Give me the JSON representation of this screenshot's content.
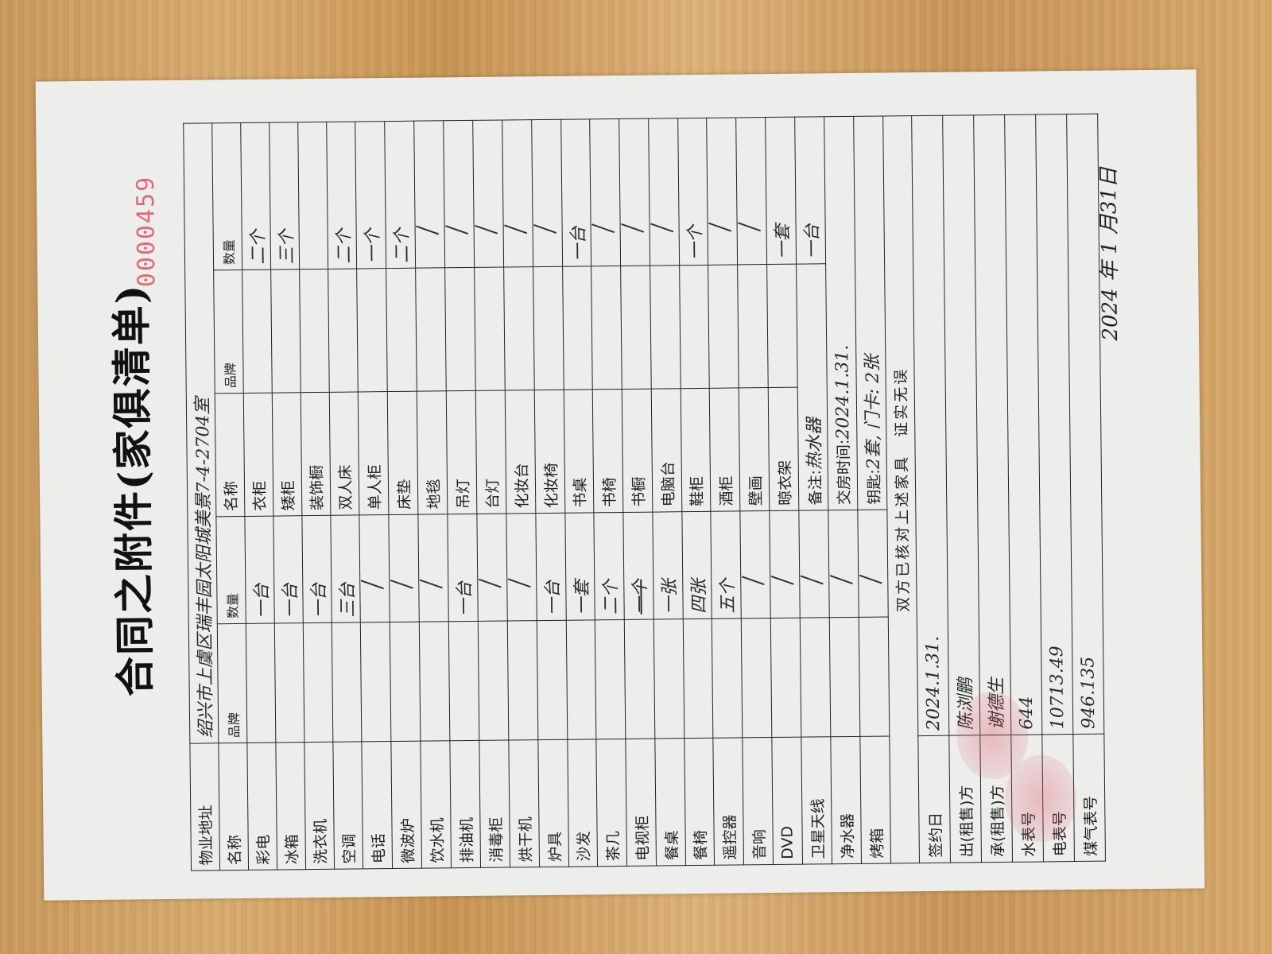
{
  "title": "合同之附件(家俱清单)",
  "serial": "0000459",
  "sign_date": "2024 年 1 月31日",
  "address": {
    "label": "物业地址",
    "value": "绍兴市上虞区瑞丰园太阳城美景7-4-2704室"
  },
  "headers": {
    "name": "名称",
    "brand": "品牌",
    "qty": "数量"
  },
  "left_items": [
    {
      "name": "彩电",
      "qty": "一台"
    },
    {
      "name": "冰箱",
      "qty": "一台"
    },
    {
      "name": "洗衣机",
      "qty": "一台"
    },
    {
      "name": "空调",
      "qty": "三台"
    },
    {
      "name": "电话",
      "qty": "/"
    },
    {
      "name": "微波炉",
      "qty": "/"
    },
    {
      "name": "饮水机",
      "qty": "/"
    },
    {
      "name": "排油机",
      "qty": "一台"
    },
    {
      "name": "消毒柜",
      "qty": "/"
    },
    {
      "name": "烘干机",
      "qty": "/"
    },
    {
      "name": "炉具",
      "qty": "一台"
    },
    {
      "name": "沙发",
      "qty": "一套"
    },
    {
      "name": "茶几",
      "qty": "二个"
    },
    {
      "name": "电视柜",
      "qty": "一个"
    },
    {
      "name": "餐桌",
      "qty": "一张"
    },
    {
      "name": "餐椅",
      "qty": "四张"
    },
    {
      "name": "遥控器",
      "qty": "五个"
    },
    {
      "name": "音响",
      "qty": "/"
    },
    {
      "name": "DVD",
      "qty": "/"
    },
    {
      "name": "卫星天线",
      "qty": "/"
    },
    {
      "name": "净水器",
      "qty": "/"
    },
    {
      "name": "烤箱",
      "qty": "/"
    }
  ],
  "right_items": [
    {
      "name": "衣柜",
      "qty": "二个"
    },
    {
      "name": "矮柜",
      "qty": "三个"
    },
    {
      "name": "装饰橱",
      "qty": ""
    },
    {
      "name": "双人床",
      "qty": "二个"
    },
    {
      "name": "单人柜",
      "qty": "一个"
    },
    {
      "name": "床垫",
      "qty": "二个"
    },
    {
      "name": "地毯",
      "qty": "/"
    },
    {
      "name": "吊灯",
      "qty": "/"
    },
    {
      "name": "台灯",
      "qty": "/"
    },
    {
      "name": "化妆台",
      "qty": "/"
    },
    {
      "name": "化妆椅",
      "qty": "/"
    },
    {
      "name": "书桌",
      "qty": "一台"
    },
    {
      "name": "书椅",
      "qty": "/"
    },
    {
      "name": "书橱",
      "qty": "/"
    },
    {
      "name": "电脑台",
      "qty": "/"
    },
    {
      "name": "鞋柜",
      "qty": "一个"
    },
    {
      "name": "酒柜",
      "qty": "/"
    },
    {
      "name": "壁画",
      "qty": "/"
    },
    {
      "name": "晾衣架",
      "qty": "一套"
    }
  ],
  "remark": {
    "label": "备注:",
    "value": "热水器",
    "qty": "一台"
  },
  "handover": {
    "label": "交房时间:",
    "value": "2024.1.31."
  },
  "keys": {
    "label": "钥匙:",
    "value": "2套, 门卡: 2张"
  },
  "confirm": "双方已核对上述家具　证实无误",
  "bottom": [
    {
      "label": "签约日",
      "value": "2024.1.31."
    },
    {
      "label": "出(租售)方",
      "value": "陈浏鹏"
    },
    {
      "label": "承(租售)方",
      "value": "谢德生"
    },
    {
      "label": "水表号",
      "value": "644"
    },
    {
      "label": "电表号",
      "value": "10713.49"
    },
    {
      "label": "煤气表号",
      "value": "946.135"
    }
  ]
}
